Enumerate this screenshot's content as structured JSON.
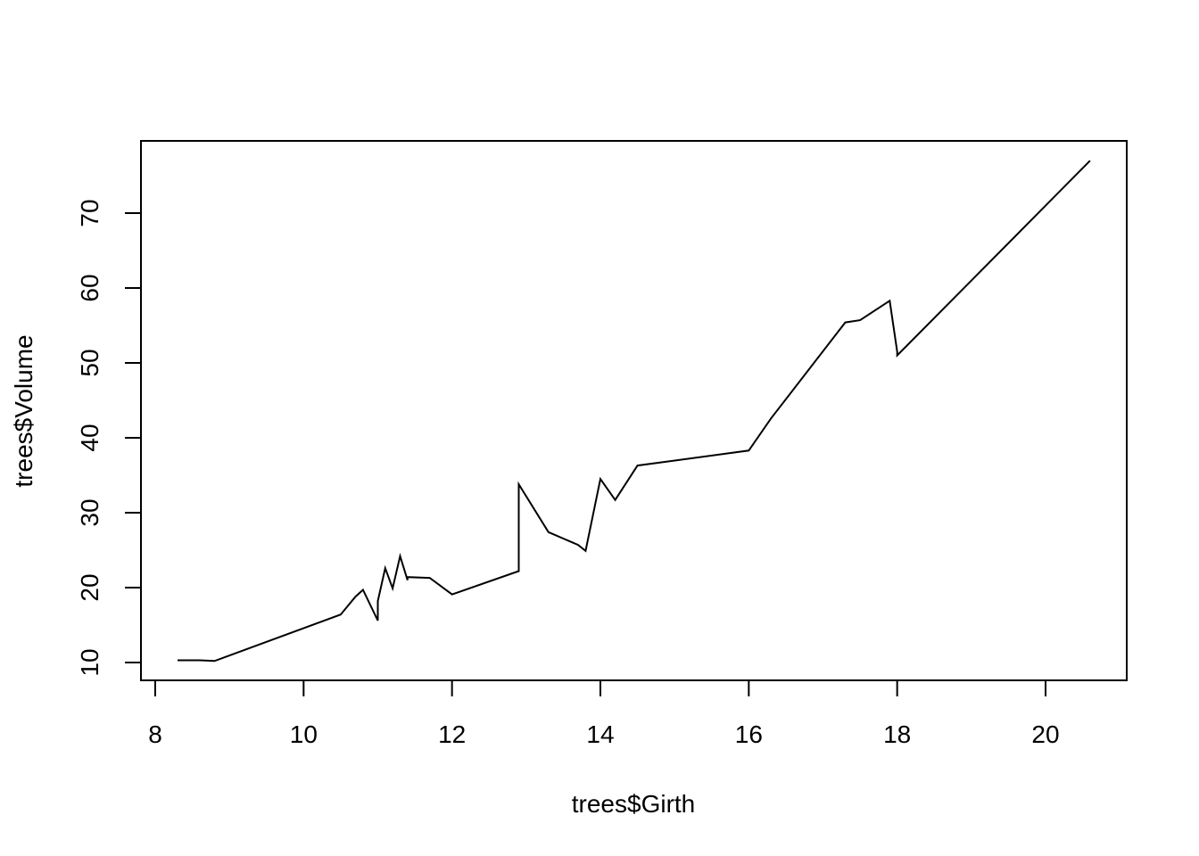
{
  "chart_data": {
    "type": "line",
    "title": "",
    "xlabel": "trees$Girth",
    "ylabel": "trees$Volume",
    "xlim": [
      8.3,
      20.6
    ],
    "ylim": [
      10.2,
      77.0
    ],
    "x_ticks": [
      8,
      10,
      12,
      14,
      16,
      18,
      20
    ],
    "y_ticks": [
      10,
      20,
      30,
      40,
      50,
      60,
      70
    ],
    "grid": false,
    "legend": "none",
    "series": [
      {
        "x": [
          8.3,
          8.6,
          8.8,
          10.5,
          10.7,
          10.8,
          11.0,
          11.0,
          11.1,
          11.2,
          11.3,
          11.4,
          11.4,
          11.7,
          12.0,
          12.9,
          12.9,
          13.3,
          13.7,
          13.8,
          14.0,
          14.2,
          14.5,
          16.0,
          16.3,
          17.3,
          17.5,
          17.9,
          18.0,
          18.0,
          20.6
        ],
        "y": [
          10.3,
          10.3,
          10.2,
          16.4,
          18.8,
          19.7,
          15.6,
          18.2,
          22.6,
          19.9,
          24.2,
          21.0,
          21.4,
          21.3,
          19.1,
          22.2,
          33.8,
          27.4,
          25.7,
          24.9,
          34.5,
          31.7,
          36.3,
          38.3,
          42.6,
          55.4,
          55.7,
          58.3,
          51.5,
          51.0,
          77.0
        ]
      }
    ]
  }
}
